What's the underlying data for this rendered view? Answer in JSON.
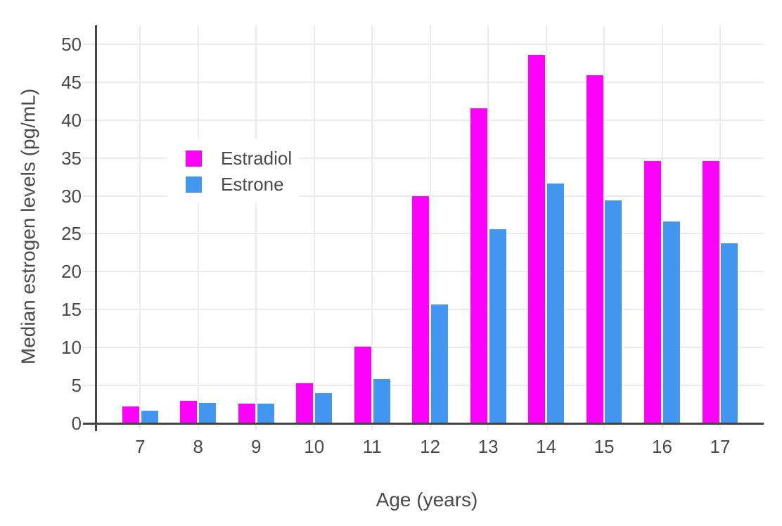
{
  "chart_data": {
    "type": "bar",
    "title": "",
    "xlabel": "Age (years)",
    "ylabel": "Median estrogen levels (pg/mL)",
    "categories": [
      "7",
      "8",
      "9",
      "10",
      "11",
      "12",
      "13",
      "14",
      "15",
      "16",
      "17"
    ],
    "series": [
      {
        "name": "Estradiol",
        "color": "#ff00fa",
        "values": [
          2.2,
          3.0,
          2.6,
          5.3,
          10.1,
          30.0,
          41.6,
          48.6,
          45.9,
          34.6,
          34.6
        ]
      },
      {
        "name": "Estrone",
        "color": "#4196f0",
        "values": [
          1.7,
          2.7,
          2.6,
          4.0,
          5.8,
          15.7,
          25.6,
          31.6,
          29.4,
          26.6,
          23.7
        ]
      }
    ],
    "ylim": [
      0,
      52.5
    ],
    "yticks": [
      0,
      5,
      10,
      15,
      20,
      25,
      30,
      35,
      40,
      45,
      50
    ],
    "grid": true,
    "bar_mode": "grouped",
    "legend_position": "inside-top-left",
    "colors": {
      "grid": "#ebebeb",
      "axis_line": "#444444",
      "text": "#4a4a4a",
      "background": "#ffffff",
      "legend_background": "#ffffff"
    }
  }
}
